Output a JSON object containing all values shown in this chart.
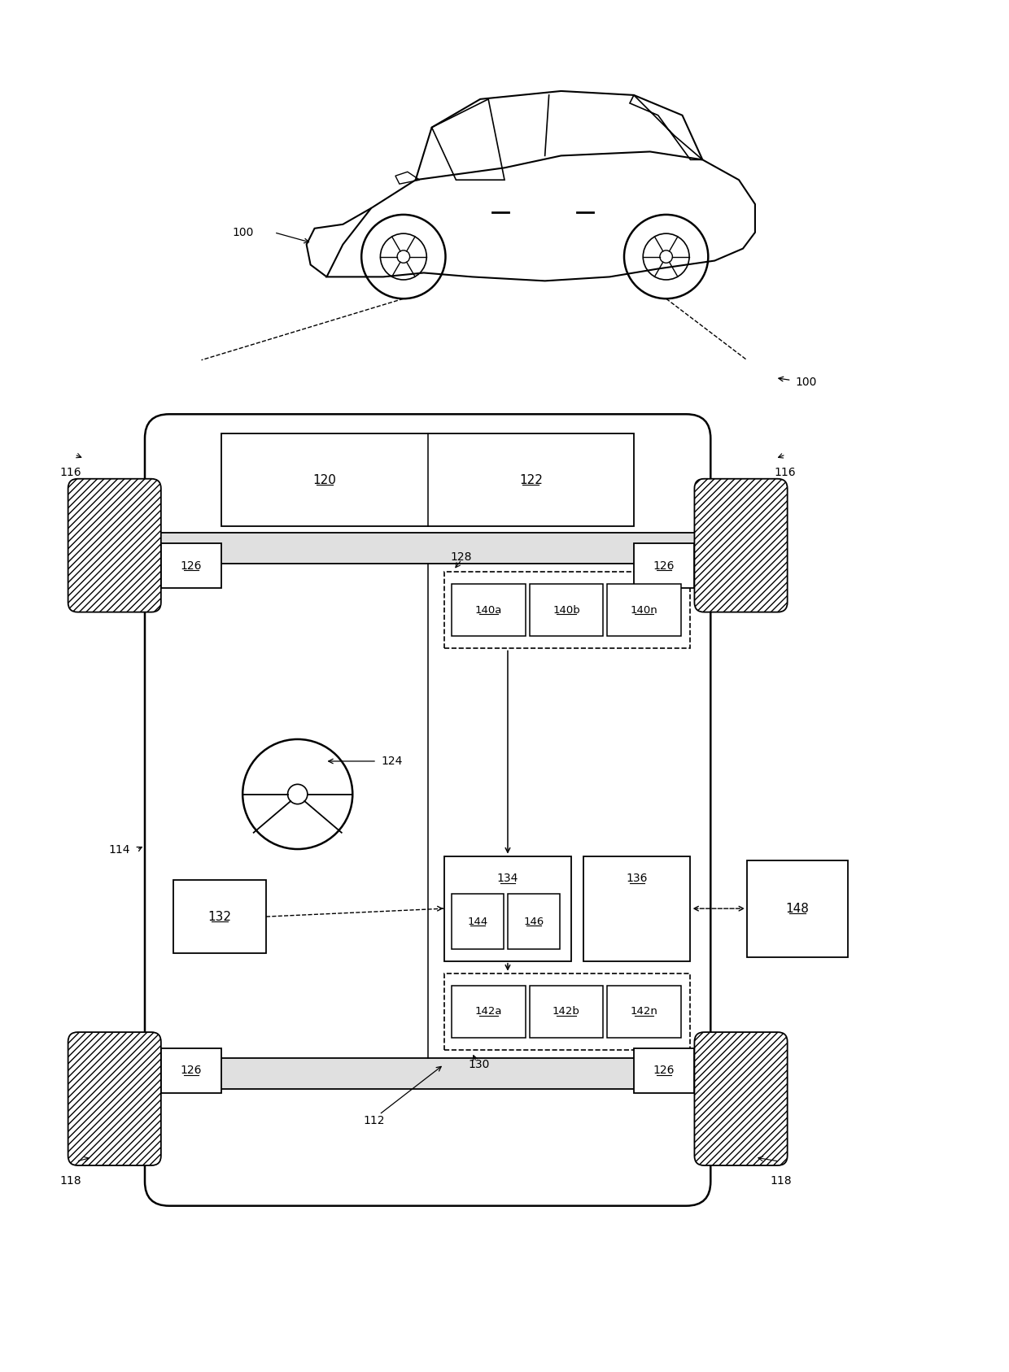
{
  "bg_color": "#ffffff",
  "fig_width": 12.4,
  "fig_height": 16.87,
  "dpi": 100,
  "labels": {
    "car_top": "100",
    "car_right": "100",
    "chassis": "114",
    "interior": "112",
    "front_axle_left": "116",
    "front_axle_right": "116",
    "rear_axle_left": "118",
    "rear_axle_right": "118",
    "wheel_fl": "126",
    "wheel_fr": "126",
    "wheel_rl": "126",
    "wheel_rr": "126",
    "steering": "124",
    "cam120": "120",
    "cam122": "122",
    "grp128": "128",
    "b140a": "140a",
    "b140b": "140b",
    "b140n": "140n",
    "box134": "134",
    "box136": "136",
    "box144": "144",
    "box146": "146",
    "box132": "132",
    "box148": "148",
    "grp130": "130",
    "b142a": "142a",
    "b142b": "142b",
    "b142n": "142n"
  }
}
